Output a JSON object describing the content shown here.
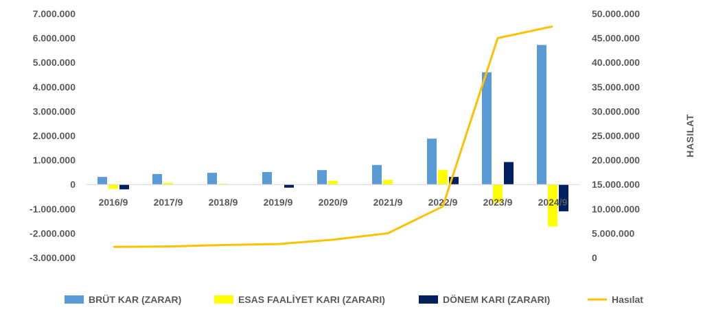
{
  "chart_data": {
    "type": "bar+line",
    "categories": [
      "2016/9",
      "2017/9",
      "2018/9",
      "2019/9",
      "2020/9",
      "2021/9",
      "2022/9",
      "2023/9",
      "2024/9"
    ],
    "series": [
      {
        "name": "BRÜT KAR (ZARAR)",
        "type": "bar",
        "axis": "left",
        "color": "#5b9bd5",
        "values": [
          310000,
          430000,
          480000,
          510000,
          590000,
          800000,
          1880000,
          4600000,
          5720000
        ]
      },
      {
        "name": "ESAS FAALİYET KARI (ZARARI)",
        "type": "bar",
        "axis": "left",
        "color": "#ffff00",
        "values": [
          -180000,
          70000,
          30000,
          0,
          150000,
          190000,
          590000,
          -750000,
          -1720000
        ]
      },
      {
        "name": "DÖNEM KARI (ZARARI)",
        "type": "bar",
        "axis": "left",
        "color": "#002060",
        "values": [
          -200000,
          0,
          0,
          -130000,
          0,
          0,
          310000,
          920000,
          -1100000
        ]
      },
      {
        "name": "Hasılat",
        "type": "line",
        "axis": "right",
        "color": "#ffc000",
        "values": [
          2200000,
          2300000,
          2600000,
          2800000,
          3700000,
          5000000,
          10500000,
          45000000,
          47400000
        ]
      }
    ],
    "y_left": {
      "min": -3000000,
      "max": 7000000,
      "step": 1000000,
      "tick_labels": [
        "-3.000.000",
        "-2.000.000",
        "-1.000.000",
        "0",
        "1.000.000",
        "2.000.000",
        "3.000.000",
        "4.000.000",
        "5.000.000",
        "6.000.000",
        "7.000.000"
      ]
    },
    "y_right": {
      "min": 0,
      "max": 50000000,
      "step": 5000000,
      "label": "HASILAT",
      "tick_labels": [
        "0",
        "5.000.000",
        "10.000.000",
        "15.000.000",
        "20.000.000",
        "25.000.000",
        "30.000.000",
        "35.000.000",
        "40.000.000",
        "45.000.000",
        "50.000.000"
      ]
    },
    "grid": false,
    "legend": "bottom"
  }
}
